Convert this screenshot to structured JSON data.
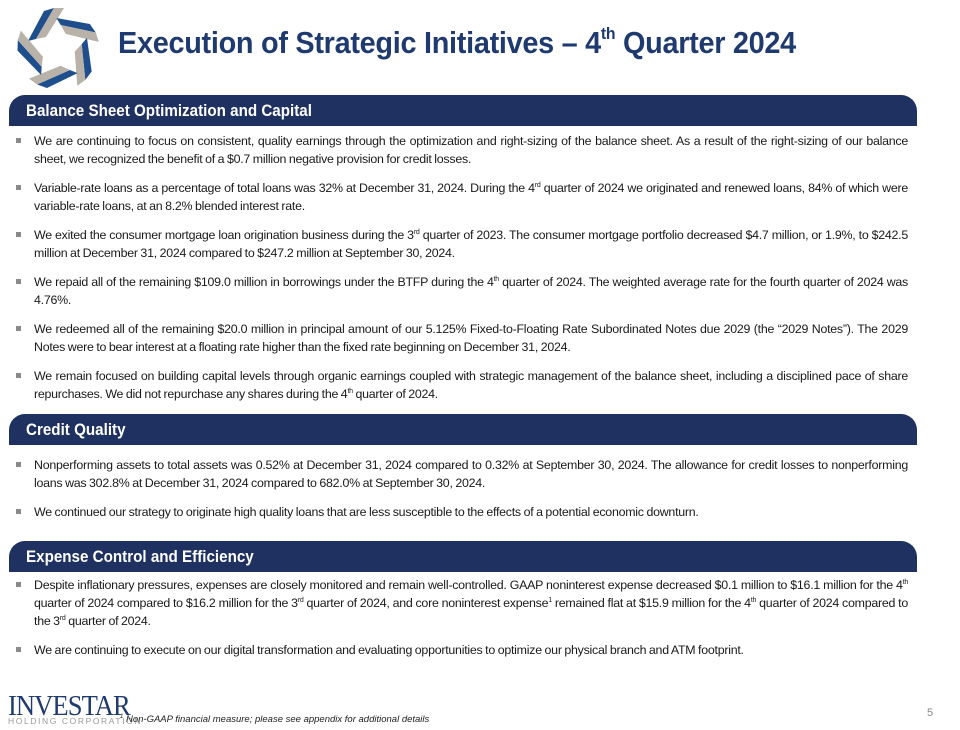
{
  "title": {
    "text": "Execution of Strategic Initiatives – 4",
    "sup": "th",
    "rest": " Quarter 2024"
  },
  "sections": [
    {
      "heading": "Balance Sheet Optimization and Capital",
      "bullets": [
        [
          {
            "t": "We are continuing to focus on consistent, quality earnings through the optimization and right-sizing of the balance sheet. As a result of the right-sizing of our balance sheet, we recognized the benefit of a $0.7 million negative provision for credit losses."
          }
        ],
        [
          {
            "t": "Variable-rate loans as a percentage of total loans was 32% at December 31, 2024. During the 4"
          },
          {
            "s": "rd"
          },
          {
            "t": " quarter of 2024 we originated and renewed loans, 84% of which were variable-rate loans, at an 8.2% blended interest rate."
          }
        ],
        [
          {
            "t": "We exited the consumer mortgage loan origination business during the 3"
          },
          {
            "s": "rd"
          },
          {
            "t": " quarter of 2023. The consumer mortgage portfolio decreased $4.7 million, or 1.9%, to $242.5 million at December 31, 2024 compared to $247.2 million at September 30, 2024."
          }
        ],
        [
          {
            "t": "We repaid all of the remaining $109.0 million in borrowings under the BTFP during the 4"
          },
          {
            "s": "th"
          },
          {
            "t": " quarter of 2024. The weighted average rate for the fourth quarter of 2024 was 4.76%."
          }
        ],
        [
          {
            "t": "We redeemed all of the remaining $20.0 million in principal amount of our 5.125% Fixed-to-Floating Rate Subordinated Notes due 2029 (the “2029 Notes”). The 2029 Notes were to bear interest at a floating rate higher than the fixed rate beginning on December 31, 2024."
          }
        ],
        [
          {
            "t": "We remain focused on building capital levels through organic earnings coupled with strategic management of the balance sheet, including a disciplined pace of share repurchases. We did not repurchase any shares during the 4"
          },
          {
            "s": "th"
          },
          {
            "t": " quarter of 2024."
          }
        ]
      ]
    },
    {
      "heading": "Credit Quality",
      "bullets": [
        [
          {
            "t": "Nonperforming assets to total assets was 0.52% at December 31, 2024 compared to 0.32% at September 30, 2024. The allowance for credit losses to nonperforming loans was 302.8% at December 31, 2024 compared to 682.0% at September 30, 2024."
          }
        ],
        [
          {
            "t": "We continued our strategy to originate high quality loans that are less susceptible to the effects of a potential economic downturn."
          }
        ]
      ]
    },
    {
      "heading": "Expense Control and Efficiency",
      "bullets": [
        [
          {
            "t": "Despite inflationary pressures, expenses are closely monitored and remain well-controlled. GAAP noninterest expense decreased $0.1 million to $16.1 million for the 4"
          },
          {
            "s": "th"
          },
          {
            "t": " quarter of 2024 compared to $16.2 million for the 3"
          },
          {
            "s": "rd"
          },
          {
            "t": " quarter of 2024, and core noninterest expense"
          },
          {
            "s": "1"
          },
          {
            "t": " remained flat at $15.9 million for the 4"
          },
          {
            "s": "th"
          },
          {
            "t": " quarter of 2024 compared to the 3"
          },
          {
            "s": "rd"
          },
          {
            "t": " quarter of 2024."
          }
        ],
        [
          {
            "t": "We are continuing to execute on our digital transformation and evaluating opportunities to optimize our physical branch and ATM footprint."
          }
        ]
      ]
    }
  ],
  "footer": {
    "logo_name": "INVESTAR",
    "logo_sub": "HOLDING CORPORATION",
    "note_sup": "1",
    "note": " Non-GAAP financial measure;  please  see  appendix  for additional  details",
    "page": "5"
  },
  "colors": {
    "navy": "#1e3160",
    "logo_blue": "#1f4e8c",
    "logo_gray": "#b8b2a8"
  }
}
